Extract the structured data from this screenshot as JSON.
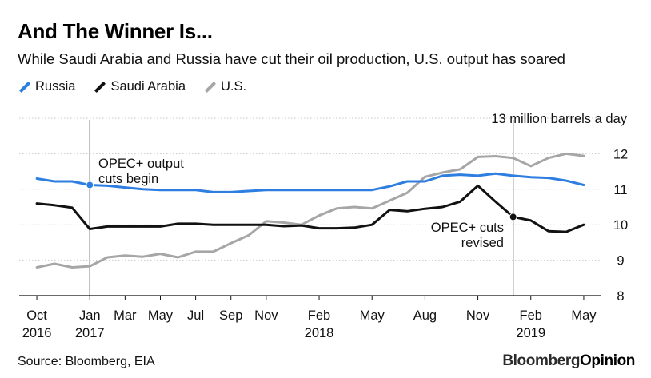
{
  "header": {
    "title": "And The Winner Is...",
    "subtitle": "While Saudi Arabia and Russia have cut their oil production, U.S. output has soared"
  },
  "legend": [
    {
      "name": "Russia",
      "color": "#2d7ee0"
    },
    {
      "name": "Saudi Arabia",
      "color": "#111111"
    },
    {
      "name": "U.S.",
      "color": "#a6a6a6"
    }
  ],
  "footer": {
    "source": "Source: Bloomberg, EIA",
    "brand_a": "Bloomberg",
    "brand_b": "Opinion"
  },
  "chart_data": {
    "type": "line",
    "title": "And The Winner Is...",
    "ylabel": "13 million barrels a day",
    "ylim": [
      8,
      13
    ],
    "yticks": [
      8,
      9,
      10,
      11,
      12
    ],
    "x_range": [
      "2016-09",
      "2019-06"
    ],
    "x_ticks": [
      {
        "date": "2016-10",
        "label": "Oct",
        "sub": "2016"
      },
      {
        "date": "2017-01",
        "label": "Jan",
        "sub": "2017"
      },
      {
        "date": "2017-03",
        "label": "Mar",
        "sub": ""
      },
      {
        "date": "2017-05",
        "label": "May",
        "sub": ""
      },
      {
        "date": "2017-07",
        "label": "Jul",
        "sub": ""
      },
      {
        "date": "2017-09",
        "label": "Sep",
        "sub": ""
      },
      {
        "date": "2017-11",
        "label": "Nov",
        "sub": ""
      },
      {
        "date": "2018-02",
        "label": "Feb",
        "sub": "2018"
      },
      {
        "date": "2018-05",
        "label": "May",
        "sub": ""
      },
      {
        "date": "2018-08",
        "label": "Aug",
        "sub": ""
      },
      {
        "date": "2018-11",
        "label": "Nov",
        "sub": ""
      },
      {
        "date": "2019-02",
        "label": "Feb",
        "sub": "2019"
      },
      {
        "date": "2019-05",
        "label": "May",
        "sub": ""
      }
    ],
    "grid": "horizontal dotted",
    "legend_position": "top-left",
    "series": [
      {
        "name": "Russia",
        "color": "#2d7ee0",
        "points": [
          [
            "2016-10",
            11.3
          ],
          [
            "2016-11",
            11.22
          ],
          [
            "2016-12",
            11.22
          ],
          [
            "2017-01",
            11.12
          ],
          [
            "2017-02",
            11.1
          ],
          [
            "2017-03",
            11.05
          ],
          [
            "2017-04",
            11.0
          ],
          [
            "2017-05",
            10.98
          ],
          [
            "2017-06",
            10.98
          ],
          [
            "2017-07",
            10.98
          ],
          [
            "2017-08",
            10.92
          ],
          [
            "2017-09",
            10.92
          ],
          [
            "2017-10",
            10.95
          ],
          [
            "2017-11",
            10.98
          ],
          [
            "2017-12",
            10.98
          ],
          [
            "2018-01",
            10.98
          ],
          [
            "2018-02",
            10.98
          ],
          [
            "2018-03",
            10.98
          ],
          [
            "2018-04",
            10.98
          ],
          [
            "2018-05",
            10.98
          ],
          [
            "2018-06",
            11.08
          ],
          [
            "2018-07",
            11.22
          ],
          [
            "2018-08",
            11.22
          ],
          [
            "2018-09",
            11.38
          ],
          [
            "2018-10",
            11.41
          ],
          [
            "2018-11",
            11.38
          ],
          [
            "2018-12",
            11.44
          ],
          [
            "2019-01",
            11.38
          ],
          [
            "2019-02",
            11.34
          ],
          [
            "2019-03",
            11.32
          ],
          [
            "2019-04",
            11.24
          ],
          [
            "2019-05",
            11.12
          ]
        ]
      },
      {
        "name": "Saudi Arabia",
        "color": "#111111",
        "points": [
          [
            "2016-10",
            10.6
          ],
          [
            "2016-11",
            10.55
          ],
          [
            "2016-12",
            10.48
          ],
          [
            "2017-01",
            9.88
          ],
          [
            "2017-02",
            9.95
          ],
          [
            "2017-03",
            9.95
          ],
          [
            "2017-04",
            9.95
          ],
          [
            "2017-05",
            9.95
          ],
          [
            "2017-06",
            10.03
          ],
          [
            "2017-07",
            10.03
          ],
          [
            "2017-08",
            10.0
          ],
          [
            "2017-09",
            10.0
          ],
          [
            "2017-10",
            10.0
          ],
          [
            "2017-11",
            10.0
          ],
          [
            "2017-12",
            9.96
          ],
          [
            "2018-01",
            9.98
          ],
          [
            "2018-02",
            9.9
          ],
          [
            "2018-03",
            9.9
          ],
          [
            "2018-04",
            9.92
          ],
          [
            "2018-05",
            10.0
          ],
          [
            "2018-06",
            10.42
          ],
          [
            "2018-07",
            10.38
          ],
          [
            "2018-08",
            10.45
          ],
          [
            "2018-09",
            10.5
          ],
          [
            "2018-10",
            10.65
          ],
          [
            "2018-11",
            11.1
          ],
          [
            "2018-12",
            10.65
          ],
          [
            "2019-01",
            10.22
          ],
          [
            "2019-02",
            10.12
          ],
          [
            "2019-03",
            9.82
          ],
          [
            "2019-04",
            9.8
          ],
          [
            "2019-05",
            10.0
          ]
        ]
      },
      {
        "name": "U.S.",
        "color": "#a6a6a6",
        "points": [
          [
            "2016-10",
            8.8
          ],
          [
            "2016-11",
            8.9
          ],
          [
            "2016-12",
            8.8
          ],
          [
            "2017-01",
            8.83
          ],
          [
            "2017-02",
            9.08
          ],
          [
            "2017-03",
            9.13
          ],
          [
            "2017-04",
            9.1
          ],
          [
            "2017-05",
            9.18
          ],
          [
            "2017-06",
            9.08
          ],
          [
            "2017-07",
            9.24
          ],
          [
            "2017-08",
            9.24
          ],
          [
            "2017-09",
            9.48
          ],
          [
            "2017-10",
            9.7
          ],
          [
            "2017-11",
            10.1
          ],
          [
            "2017-12",
            10.06
          ],
          [
            "2018-01",
            10.0
          ],
          [
            "2018-02",
            10.26
          ],
          [
            "2018-03",
            10.46
          ],
          [
            "2018-04",
            10.5
          ],
          [
            "2018-05",
            10.46
          ],
          [
            "2018-06",
            10.68
          ],
          [
            "2018-07",
            10.9
          ],
          [
            "2018-08",
            11.35
          ],
          [
            "2018-09",
            11.47
          ],
          [
            "2018-10",
            11.56
          ],
          [
            "2018-11",
            11.91
          ],
          [
            "2018-12",
            11.93
          ],
          [
            "2019-01",
            11.88
          ],
          [
            "2019-02",
            11.65
          ],
          [
            "2019-03",
            11.88
          ],
          [
            "2019-04",
            12.0
          ],
          [
            "2019-05",
            11.94
          ]
        ]
      }
    ],
    "annotations": [
      {
        "id": "opec-begin",
        "date": "2017-01",
        "series": "Russia",
        "y": 11.12,
        "lines": [
          "OPEC+ output",
          "cuts begin"
        ]
      },
      {
        "id": "opec-revised",
        "date": "2019-01",
        "series": "Saudi Arabia",
        "y": 10.22,
        "lines": [
          "OPEC+ cuts",
          "revised"
        ]
      }
    ]
  }
}
